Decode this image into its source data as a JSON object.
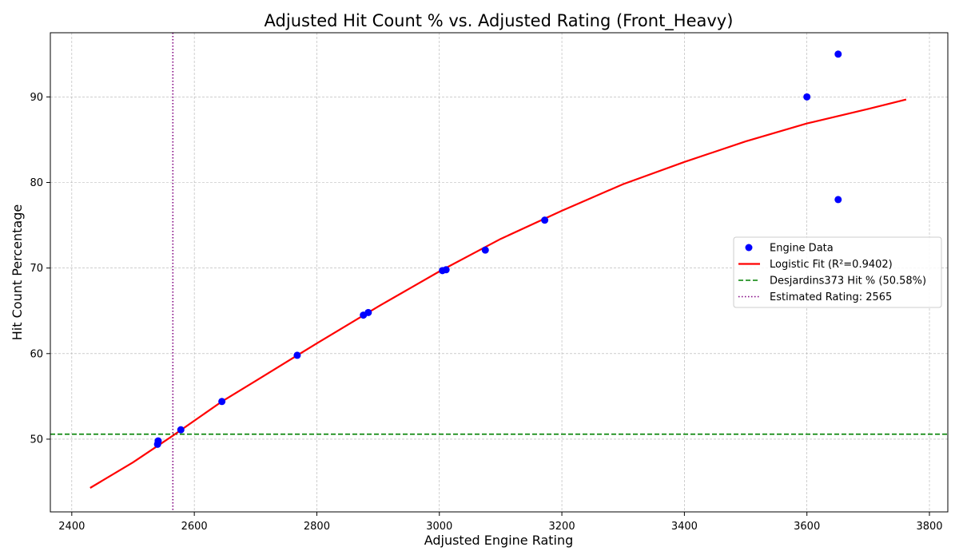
{
  "chart_data": {
    "type": "scatter",
    "title": "Adjusted Hit Count % vs. Adjusted Rating (Front_Heavy)",
    "xlabel": "Adjusted Engine Rating",
    "ylabel": "Hit Count Percentage",
    "xlim": [
      2365,
      3830
    ],
    "ylim": [
      41.5,
      97.5
    ],
    "xticks": [
      2400,
      2600,
      2800,
      3000,
      3200,
      3400,
      3600,
      3800
    ],
    "yticks": [
      50,
      60,
      70,
      80,
      90
    ],
    "grid": true,
    "legend_position": "center-right",
    "series": [
      {
        "name": "Engine Data",
        "kind": "scatter",
        "color": "#0000ff",
        "points": [
          [
            2540,
            49.4
          ],
          [
            2541,
            49.8
          ],
          [
            2578,
            51.1
          ],
          [
            2645,
            54.4
          ],
          [
            2768,
            59.8
          ],
          [
            2876,
            64.5
          ],
          [
            2884,
            64.8
          ],
          [
            3005,
            69.7
          ],
          [
            3011,
            69.8
          ],
          [
            3075,
            72.1
          ],
          [
            3172,
            75.6
          ],
          [
            3600,
            90.0
          ],
          [
            3651,
            95.0
          ],
          [
            3651,
            78.0
          ]
        ]
      },
      {
        "name": "Logistic Fit (R²=0.9402)",
        "kind": "line",
        "color": "#ff0000",
        "points": [
          [
            2430,
            44.3
          ],
          [
            2500,
            47.3
          ],
          [
            2565,
            50.4
          ],
          [
            2645,
            54.4
          ],
          [
            2700,
            56.8
          ],
          [
            2800,
            61.2
          ],
          [
            2900,
            65.5
          ],
          [
            3000,
            69.6
          ],
          [
            3100,
            73.4
          ],
          [
            3200,
            76.7
          ],
          [
            3300,
            79.8
          ],
          [
            3400,
            82.4
          ],
          [
            3500,
            84.8
          ],
          [
            3600,
            86.9
          ],
          [
            3700,
            88.6
          ],
          [
            3762,
            89.7
          ]
        ]
      },
      {
        "name": "Desjardins373 Hit % (50.58%)",
        "kind": "hline",
        "color": "#008000",
        "y": 50.58
      },
      {
        "name": "Estimated Rating: 2565",
        "kind": "vline",
        "color": "#800080",
        "x": 2565
      }
    ]
  }
}
